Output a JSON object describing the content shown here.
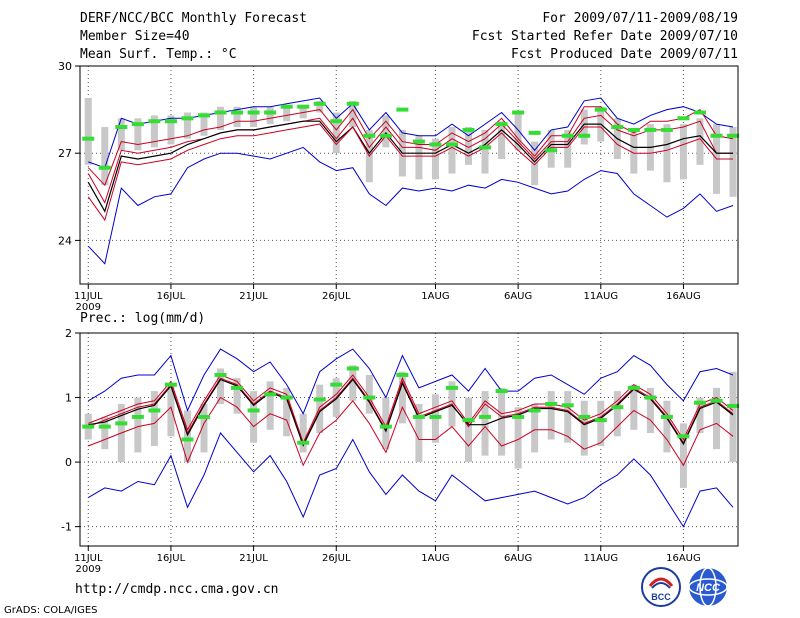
{
  "header": {
    "title": "DERF/NCC/BCC Monthly Forecast",
    "member_size": "Member Size=40",
    "variable": "Mean Surf. Temp.: °C",
    "period": "For 2009/07/11-2009/08/19",
    "started": "Fcst Started Refer Date 2009/07/10",
    "produced": "Fcst Produced Date 2009/07/11"
  },
  "footer": {
    "url": "http://cmdp.ncc.cma.gov.cn",
    "grads": "GrADS: COLA/IGES",
    "logo_left_text": "BCC",
    "logo_right_text": "NCC"
  },
  "colors": {
    "max_min": "#0000cc",
    "percentile": "#cc0022",
    "ensemble_mean": "#000000",
    "box": "#c8c8c8",
    "median": "#33dd33"
  },
  "chart_data": [
    {
      "type": "line",
      "title": "Mean Surf. Temp.: °C",
      "xlabel": "",
      "ylabel": "",
      "ylim": [
        22.5,
        30
      ],
      "yticks": [
        24,
        27,
        30
      ],
      "xlim": [
        10.5,
        50.3
      ],
      "xticks": [
        11,
        16,
        21,
        26,
        32,
        37,
        42,
        47
      ],
      "xticklabels": [
        "11JUL",
        "16JUL",
        "21JUL",
        "26JUL",
        "1AUG",
        "6AUG",
        "11AUG",
        "16AUG"
      ],
      "year_label": "2009",
      "grid": "dotted",
      "x": [
        11,
        12,
        13,
        14,
        15,
        16,
        17,
        18,
        19,
        20,
        21,
        22,
        23,
        24,
        25,
        26,
        27,
        28,
        29,
        30,
        31,
        32,
        33,
        34,
        35,
        36,
        37,
        38,
        39,
        40,
        41,
        42,
        43,
        44,
        45,
        46,
        47,
        48,
        49,
        50
      ],
      "box_low": [
        26.6,
        25.9,
        27.1,
        27.1,
        27.2,
        27.3,
        27.5,
        27.6,
        27.8,
        27.9,
        27.9,
        28.0,
        28.1,
        28.2,
        28.4,
        27.0,
        27.9,
        26.0,
        27.2,
        26.2,
        26.1,
        26.1,
        26.3,
        26.6,
        26.3,
        26.8,
        27.1,
        25.9,
        26.5,
        26.5,
        27.3,
        27.4,
        26.8,
        26.3,
        26.4,
        26.0,
        26.1,
        26.6,
        25.6,
        25.5
      ],
      "box_high": [
        28.9,
        27.9,
        28.2,
        28.2,
        28.3,
        28.3,
        28.4,
        28.4,
        28.6,
        28.6,
        28.6,
        28.6,
        28.6,
        28.6,
        28.8,
        28.4,
        28.8,
        27.8,
        28.3,
        27.8,
        27.6,
        27.5,
        27.9,
        27.9,
        27.8,
        28.1,
        28.4,
        27.4,
        27.8,
        27.8,
        28.5,
        28.6,
        28.2,
        27.8,
        28.0,
        28.0,
        28.0,
        28.2,
        28.0,
        27.9
      ],
      "series": [
        {
          "name": "max",
          "values": [
            26.7,
            26.5,
            28.2,
            28.0,
            28.1,
            28.2,
            28.2,
            28.3,
            28.4,
            28.5,
            28.6,
            28.6,
            28.7,
            28.8,
            28.9,
            28.2,
            28.7,
            27.8,
            28.4,
            27.7,
            27.6,
            27.6,
            28.0,
            27.6,
            28.0,
            28.4,
            27.8,
            27.1,
            27.8,
            27.9,
            28.8,
            28.9,
            28.2,
            28.0,
            28.3,
            28.5,
            28.6,
            28.4,
            28.0,
            27.9
          ]
        },
        {
          "name": "p90",
          "values": [
            26.5,
            25.9,
            27.4,
            27.3,
            27.4,
            27.5,
            27.6,
            27.8,
            27.9,
            28.1,
            28.1,
            28.2,
            28.3,
            28.4,
            28.5,
            27.8,
            28.5,
            27.5,
            28.1,
            27.4,
            27.3,
            27.3,
            27.7,
            27.4,
            27.7,
            28.2,
            27.5,
            26.9,
            27.6,
            27.6,
            28.6,
            28.6,
            28.0,
            27.7,
            28.1,
            28.1,
            28.2,
            28.5,
            27.6,
            27.5
          ]
        },
        {
          "name": "mean",
          "values": [
            26.3,
            25.3,
            27.1,
            27.0,
            27.1,
            27.2,
            27.4,
            27.5,
            27.7,
            27.8,
            27.8,
            27.9,
            28.0,
            28.1,
            28.2,
            27.5,
            28.2,
            27.2,
            27.9,
            27.2,
            27.2,
            27.1,
            27.5,
            27.2,
            27.5,
            28.0,
            27.4,
            26.8,
            27.4,
            27.4,
            28.2,
            28.3,
            27.8,
            27.6,
            27.8,
            27.8,
            27.9,
            28.1,
            27.0,
            27.0
          ]
        },
        {
          "name": "ens",
          "values": [
            26.0,
            25.0,
            26.9,
            26.8,
            26.9,
            27.0,
            27.3,
            27.5,
            27.7,
            27.8,
            27.8,
            27.9,
            28.0,
            28.1,
            28.1,
            27.4,
            27.9,
            27.0,
            27.7,
            27.0,
            27.0,
            27.0,
            27.3,
            27.0,
            27.3,
            27.8,
            27.3,
            26.7,
            27.3,
            27.3,
            28.0,
            28.0,
            27.5,
            27.2,
            27.2,
            27.3,
            27.5,
            27.6,
            27.0,
            27.0
          ]
        },
        {
          "name": "p10",
          "values": [
            25.5,
            24.7,
            26.7,
            26.6,
            26.7,
            26.8,
            27.1,
            27.3,
            27.5,
            27.6,
            27.6,
            27.7,
            27.8,
            27.9,
            28.0,
            27.3,
            27.9,
            26.9,
            27.6,
            26.9,
            26.9,
            26.9,
            27.2,
            26.9,
            27.2,
            27.7,
            27.1,
            26.6,
            27.2,
            27.2,
            27.9,
            27.9,
            27.3,
            27.0,
            27.0,
            27.1,
            27.3,
            27.5,
            26.8,
            26.8
          ]
        },
        {
          "name": "min",
          "values": [
            23.8,
            23.2,
            25.8,
            25.2,
            25.5,
            25.6,
            26.5,
            26.8,
            27.0,
            27.0,
            26.9,
            26.8,
            27.0,
            27.2,
            26.7,
            26.4,
            26.5,
            25.6,
            25.2,
            25.8,
            25.7,
            25.8,
            25.7,
            25.9,
            25.8,
            26.1,
            26.0,
            25.8,
            25.6,
            25.7,
            26.1,
            26.4,
            26.3,
            25.6,
            25.2,
            24.8,
            25.1,
            25.6,
            25.0,
            25.2
          ]
        },
        {
          "name": "median",
          "values": [
            27.5,
            26.5,
            27.9,
            28.0,
            28.1,
            28.1,
            28.2,
            28.3,
            28.4,
            28.4,
            28.4,
            28.4,
            28.6,
            28.6,
            28.7,
            28.1,
            28.7,
            27.6,
            27.6,
            28.5,
            27.4,
            27.3,
            27.3,
            27.8,
            27.2,
            28.0,
            28.4,
            27.7,
            27.1,
            27.6,
            27.6,
            28.5,
            27.9,
            27.8,
            27.8,
            27.8,
            28.2,
            28.4,
            27.6,
            27.6
          ]
        }
      ]
    },
    {
      "type": "line",
      "title": "Prec.: log(mm/d)",
      "xlabel": "",
      "ylabel": "",
      "ylim": [
        -1.3,
        2
      ],
      "yticks": [
        -1,
        0,
        1,
        2
      ],
      "xlim": [
        10.5,
        50.3
      ],
      "xticks": [
        11,
        16,
        21,
        26,
        32,
        37,
        42,
        47
      ],
      "xticklabels": [
        "11JUL",
        "16JUL",
        "21JUL",
        "26JUL",
        "1AUG",
        "6AUG",
        "11AUG",
        "16AUG"
      ],
      "year_label": "2009",
      "grid": "dotted",
      "x": [
        11,
        12,
        13,
        14,
        15,
        16,
        17,
        18,
        19,
        20,
        21,
        22,
        23,
        24,
        25,
        26,
        27,
        28,
        29,
        30,
        31,
        32,
        33,
        34,
        35,
        36,
        37,
        38,
        39,
        40,
        41,
        42,
        43,
        44,
        45,
        46,
        47,
        48,
        49,
        50
      ],
      "box_low": [
        0.35,
        0.2,
        0.0,
        0.15,
        0.25,
        0.4,
        0.0,
        0.15,
        0.9,
        0.75,
        0.3,
        0.5,
        0.4,
        0.15,
        0.45,
        0.7,
        0.95,
        0.75,
        0.2,
        0.6,
        0.0,
        0.3,
        0.55,
        0.0,
        0.1,
        0.1,
        -0.1,
        0.15,
        0.35,
        0.3,
        0.1,
        0.25,
        0.4,
        0.5,
        0.45,
        0.15,
        -0.4,
        0.45,
        0.2,
        0.0
      ],
      "box_high": [
        0.75,
        0.7,
        0.9,
        1.0,
        1.1,
        1.2,
        0.8,
        0.9,
        1.45,
        1.3,
        1.1,
        1.25,
        1.15,
        0.75,
        1.2,
        1.3,
        1.5,
        1.35,
        1.0,
        1.4,
        0.9,
        1.05,
        1.25,
        1.0,
        1.1,
        1.15,
        0.85,
        0.9,
        1.1,
        1.1,
        0.95,
        0.95,
        1.1,
        1.2,
        1.15,
        0.95,
        0.6,
        1.0,
        1.15,
        1.4
      ],
      "series": [
        {
          "name": "max",
          "values": [
            0.95,
            1.1,
            1.3,
            1.35,
            1.35,
            1.65,
            0.8,
            1.35,
            1.75,
            1.6,
            1.4,
            1.55,
            1.2,
            0.75,
            1.4,
            1.6,
            1.75,
            1.45,
            1.0,
            1.65,
            1.15,
            1.25,
            1.35,
            1.1,
            1.45,
            1.1,
            1.1,
            1.3,
            1.35,
            1.2,
            1.05,
            1.3,
            1.4,
            1.65,
            1.5,
            1.2,
            0.95,
            1.4,
            1.45,
            1.35
          ]
        },
        {
          "name": "p90",
          "values": [
            0.6,
            0.7,
            0.8,
            0.9,
            0.95,
            1.25,
            0.5,
            0.95,
            1.35,
            1.25,
            0.95,
            1.15,
            1.05,
            0.3,
            0.85,
            1.05,
            1.35,
            1.0,
            0.55,
            1.3,
            0.75,
            0.85,
            0.95,
            0.6,
            0.95,
            0.75,
            0.8,
            0.9,
            0.9,
            0.85,
            0.65,
            0.75,
            0.95,
            1.2,
            1.05,
            0.75,
            0.35,
            0.9,
            1.0,
            0.8
          ]
        },
        {
          "name": "mean",
          "values": [
            0.55,
            0.65,
            0.75,
            0.85,
            0.9,
            1.2,
            0.45,
            0.9,
            1.3,
            1.2,
            0.9,
            1.1,
            1.0,
            0.28,
            0.8,
            1.0,
            1.3,
            0.95,
            0.5,
            1.25,
            0.7,
            0.8,
            0.9,
            0.55,
            0.9,
            0.7,
            0.75,
            0.85,
            0.85,
            0.8,
            0.6,
            0.7,
            0.9,
            1.15,
            1.0,
            0.7,
            0.3,
            0.85,
            0.95,
            0.75
          ]
        },
        {
          "name": "ens",
          "values": [
            0.58,
            0.62,
            0.72,
            0.82,
            0.88,
            1.18,
            0.42,
            0.88,
            1.28,
            1.18,
            0.88,
            1.08,
            0.98,
            0.26,
            0.78,
            0.98,
            1.28,
            0.93,
            0.48,
            1.22,
            0.68,
            0.78,
            0.88,
            0.58,
            0.58,
            0.68,
            0.73,
            0.83,
            0.83,
            0.78,
            0.58,
            0.68,
            0.88,
            1.13,
            0.98,
            0.68,
            0.28,
            0.83,
            0.93,
            0.73
          ]
        },
        {
          "name": "p10",
          "values": [
            0.25,
            0.35,
            0.45,
            0.55,
            0.6,
            0.85,
            0.0,
            0.6,
            1.0,
            0.85,
            0.55,
            0.75,
            0.65,
            -0.05,
            0.45,
            0.65,
            0.95,
            0.6,
            0.15,
            0.85,
            0.35,
            0.35,
            0.55,
            0.25,
            0.55,
            0.25,
            0.35,
            0.5,
            0.5,
            0.4,
            0.2,
            0.3,
            0.55,
            0.8,
            0.65,
            0.35,
            -0.05,
            0.5,
            0.6,
            0.4
          ]
        },
        {
          "name": "min",
          "values": [
            -0.55,
            -0.4,
            -0.45,
            -0.3,
            -0.35,
            0.1,
            -0.7,
            -0.2,
            0.45,
            0.15,
            -0.15,
            0.1,
            -0.3,
            -0.85,
            -0.2,
            -0.1,
            0.35,
            -0.15,
            -0.5,
            -0.2,
            -0.45,
            -0.6,
            -0.2,
            -0.4,
            -0.6,
            -0.55,
            -0.5,
            -0.45,
            -0.55,
            -0.65,
            -0.55,
            -0.35,
            -0.2,
            0.05,
            -0.2,
            -0.6,
            -1.0,
            -0.45,
            -0.4,
            -0.7
          ]
        },
        {
          "name": "median",
          "values": [
            0.55,
            0.55,
            0.6,
            0.7,
            0.8,
            1.2,
            0.35,
            0.7,
            1.35,
            1.15,
            0.8,
            1.05,
            1.0,
            0.3,
            0.97,
            1.2,
            1.45,
            1.0,
            0.55,
            1.35,
            0.7,
            0.7,
            1.15,
            0.65,
            0.7,
            1.1,
            0.7,
            0.8,
            0.9,
            0.88,
            0.7,
            0.65,
            0.85,
            1.15,
            1.0,
            0.7,
            0.4,
            0.92,
            0.95,
            0.87
          ]
        }
      ]
    }
  ]
}
